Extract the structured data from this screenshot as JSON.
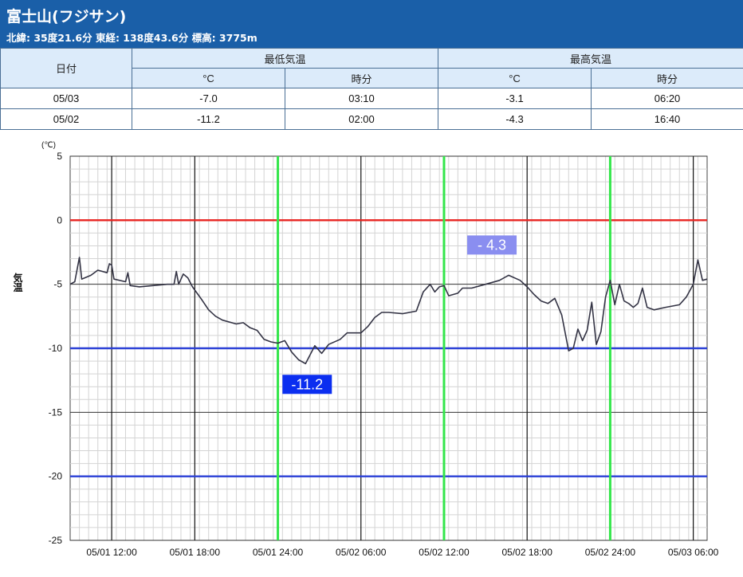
{
  "header": {
    "title": "富士山(フジサン)",
    "subtitle": "北緯: 35度21.6分 東経: 138度43.6分 標高: 3775m"
  },
  "table": {
    "date_header": "日付",
    "min_header": "最低気温",
    "max_header": "最高気温",
    "unit_header": "°C",
    "time_header": "時分",
    "rows": [
      {
        "date": "05/03",
        "min_temp": "-7.0",
        "min_time": "03:10",
        "max_temp": "-3.1",
        "max_time": "06:20"
      },
      {
        "date": "05/02",
        "min_temp": "-11.2",
        "min_time": "02:00",
        "max_temp": "-4.3",
        "max_time": "16:40"
      }
    ]
  },
  "colors": {
    "zero_line": "#e8231f",
    "reference_lines": "#2a3fd6",
    "day_markers": "#33e64a",
    "series": "#333344",
    "min_label_bg": "#0b2ef0",
    "max_label_bg": "#8a8ef0"
  },
  "chart_data": {
    "type": "line",
    "ylabel": "気温",
    "yunit": "(℃)",
    "ylim": [
      -25,
      5
    ],
    "yticks": [
      "5",
      "0",
      "-5",
      "-10",
      "-15",
      "-20",
      "-25"
    ],
    "x_range": [
      "05/01 09:00",
      "05/03 07:00"
    ],
    "xticks": [
      "05/01 12:00",
      "05/01 18:00",
      "05/01 24:00",
      "05/02 06:00",
      "05/02 12:00",
      "05/02 18:00",
      "05/02 24:00",
      "05/03 06:00"
    ],
    "grid": true,
    "reference_lines": [
      0,
      -10,
      -20
    ],
    "day_markers": [
      "05/01 24:00",
      "05/02 12:00",
      "05/02 24:00"
    ],
    "annotations": [
      {
        "text": "-11.2",
        "time": "05/02 02:00",
        "value": -11.2
      },
      {
        "text": "- 4.3",
        "time": "05/02 16:40",
        "value": -4.3
      }
    ],
    "series": [
      {
        "name": "",
        "points": [
          [
            "05/01 09:00",
            -5.0
          ],
          [
            "05/01 09:20",
            -4.8
          ],
          [
            "05/01 09:40",
            -2.9
          ],
          [
            "05/01 09:50",
            -4.6
          ],
          [
            "05/01 10:30",
            -4.3
          ],
          [
            "05/01 11:00",
            -3.9
          ],
          [
            "05/01 11:40",
            -4.1
          ],
          [
            "05/01 11:50",
            -3.4
          ],
          [
            "05/01 12:00",
            -3.5
          ],
          [
            "05/01 12:10",
            -4.6
          ],
          [
            "05/01 13:00",
            -4.8
          ],
          [
            "05/01 13:10",
            -4.1
          ],
          [
            "05/01 13:20",
            -5.1
          ],
          [
            "05/01 14:00",
            -5.2
          ],
          [
            "05/01 15:00",
            -5.1
          ],
          [
            "05/01 16:00",
            -5.0
          ],
          [
            "05/01 16:30",
            -5.0
          ],
          [
            "05/01 16:40",
            -4.0
          ],
          [
            "05/01 16:50",
            -5.0
          ],
          [
            "05/01 17:10",
            -4.2
          ],
          [
            "05/01 17:30",
            -4.5
          ],
          [
            "05/01 17:50",
            -5.2
          ],
          [
            "05/01 18:30",
            -6.2
          ],
          [
            "05/01 19:00",
            -7.0
          ],
          [
            "05/01 19:30",
            -7.5
          ],
          [
            "05/01 20:00",
            -7.8
          ],
          [
            "05/01 21:00",
            -8.1
          ],
          [
            "05/01 21:30",
            -8.0
          ],
          [
            "05/01 22:00",
            -8.4
          ],
          [
            "05/01 22:30",
            -8.6
          ],
          [
            "05/01 23:00",
            -9.3
          ],
          [
            "05/01 23:30",
            -9.5
          ],
          [
            "05/02 00:00",
            -9.6
          ],
          [
            "05/02 00:30",
            -9.4
          ],
          [
            "05/02 01:00",
            -10.3
          ],
          [
            "05/02 01:30",
            -10.9
          ],
          [
            "05/02 02:00",
            -11.2
          ],
          [
            "05/02 02:20",
            -10.5
          ],
          [
            "05/02 02:40",
            -9.8
          ],
          [
            "05/02 03:10",
            -10.4
          ],
          [
            "05/02 03:40",
            -9.7
          ],
          [
            "05/02 04:30",
            -9.3
          ],
          [
            "05/02 05:00",
            -8.8
          ],
          [
            "05/02 06:00",
            -8.8
          ],
          [
            "05/02 06:30",
            -8.3
          ],
          [
            "05/02 07:00",
            -7.6
          ],
          [
            "05/02 07:30",
            -7.2
          ],
          [
            "05/02 08:00",
            -7.2
          ],
          [
            "05/02 09:00",
            -7.3
          ],
          [
            "05/02 10:00",
            -7.1
          ],
          [
            "05/02 10:30",
            -5.6
          ],
          [
            "05/02 11:00",
            -5.0
          ],
          [
            "05/02 11:20",
            -5.6
          ],
          [
            "05/02 11:40",
            -5.2
          ],
          [
            "05/02 12:00",
            -5.1
          ],
          [
            "05/02 12:20",
            -5.9
          ],
          [
            "05/02 13:00",
            -5.7
          ],
          [
            "05/02 13:20",
            -5.3
          ],
          [
            "05/02 14:00",
            -5.3
          ],
          [
            "05/02 15:00",
            -5.0
          ],
          [
            "05/02 16:00",
            -4.7
          ],
          [
            "05/02 16:40",
            -4.3
          ],
          [
            "05/02 17:30",
            -4.7
          ],
          [
            "05/02 18:00",
            -5.2
          ],
          [
            "05/02 18:30",
            -5.8
          ],
          [
            "05/02 19:00",
            -6.3
          ],
          [
            "05/02 19:30",
            -6.5
          ],
          [
            "05/02 20:00",
            -6.1
          ],
          [
            "05/02 20:30",
            -7.4
          ],
          [
            "05/02 21:00",
            -10.2
          ],
          [
            "05/02 21:20",
            -10.0
          ],
          [
            "05/02 21:40",
            -8.5
          ],
          [
            "05/02 22:00",
            -9.4
          ],
          [
            "05/02 22:20",
            -8.6
          ],
          [
            "05/02 22:40",
            -6.4
          ],
          [
            "05/02 23:00",
            -9.7
          ],
          [
            "05/02 23:20",
            -8.7
          ],
          [
            "05/02 23:40",
            -6.0
          ],
          [
            "05/03 00:00",
            -4.7
          ],
          [
            "05/03 00:20",
            -6.6
          ],
          [
            "05/03 00:40",
            -5.0
          ],
          [
            "05/03 01:00",
            -6.3
          ],
          [
            "05/03 01:20",
            -6.5
          ],
          [
            "05/03 01:40",
            -6.8
          ],
          [
            "05/03 02:00",
            -6.5
          ],
          [
            "05/03 02:20",
            -5.3
          ],
          [
            "05/03 02:40",
            -6.8
          ],
          [
            "05/03 03:10",
            -7.0
          ],
          [
            "05/03 04:00",
            -6.8
          ],
          [
            "05/03 05:00",
            -6.6
          ],
          [
            "05/03 05:30",
            -6.0
          ],
          [
            "05/03 06:00",
            -5.0
          ],
          [
            "05/03 06:20",
            -3.1
          ],
          [
            "05/03 06:40",
            -4.7
          ],
          [
            "05/03 07:00",
            -4.6
          ]
        ]
      }
    ]
  }
}
